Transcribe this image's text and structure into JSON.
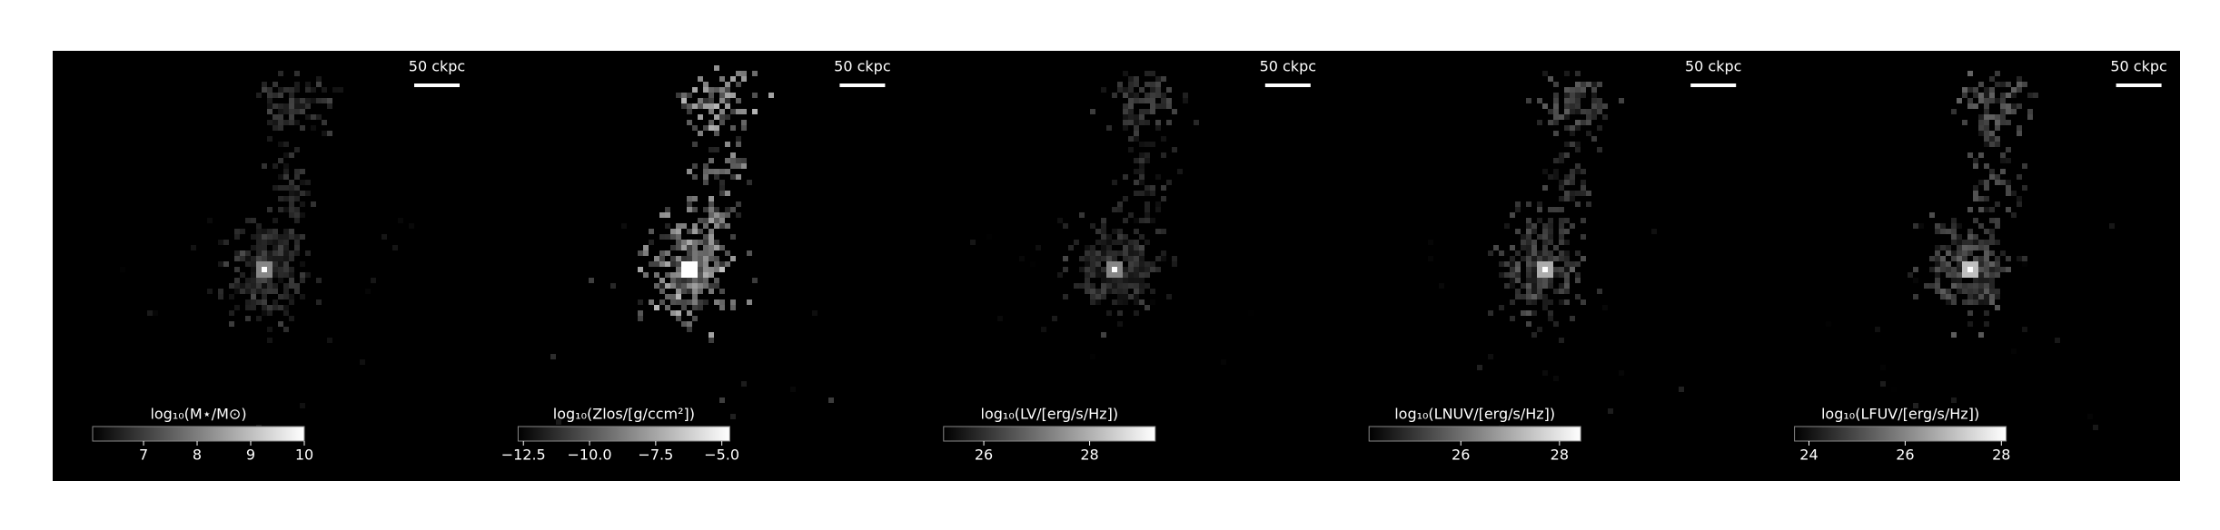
{
  "chart_data": [
    {
      "type": "image",
      "scale_bar": "50 ckpc",
      "colormap": [
        "#000000",
        "#ffffff"
      ],
      "colorbar": {
        "label": "log₁₀(M⋆/M⊙)",
        "xlim": [
          6.05,
          10.0
        ],
        "xticks": [
          7,
          8,
          9,
          10
        ]
      }
    },
    {
      "type": "image",
      "scale_bar": "50 ckpc",
      "colormap": [
        "#000000",
        "#ffffff"
      ],
      "colorbar": {
        "label": "log₁₀(Zlos/[g/ccm²])",
        "xlim": [
          -12.7,
          -4.7
        ],
        "xticks": [
          {
            "value": -12.5,
            "label": "−12.5"
          },
          {
            "value": -10.0,
            "label": "−10.0"
          },
          {
            "value": -7.5,
            "label": "−7.5"
          },
          {
            "value": -5.0,
            "label": "−5.0"
          }
        ]
      }
    },
    {
      "type": "image",
      "scale_bar": "50 ckpc",
      "colormap": [
        "#000000",
        "#ffffff"
      ],
      "colorbar": {
        "label": "log₁₀(LV/[erg/s/Hz])",
        "xlim": [
          25.24,
          29.24
        ],
        "xticks": [
          26,
          28
        ]
      }
    },
    {
      "type": "image",
      "scale_bar": "50 ckpc",
      "colormap": [
        "#000000",
        "#ffffff"
      ],
      "colorbar": {
        "label": "log₁₀(LNUV/[erg/s/Hz])",
        "xlim": [
          24.14,
          28.43
        ],
        "xticks": [
          26,
          28
        ]
      }
    },
    {
      "type": "image",
      "scale_bar": "50 ckpc",
      "colormap": [
        "#000000",
        "#ffffff"
      ],
      "colorbar": {
        "label": "log₁₀(LFUV/[erg/s/Hz])",
        "xlim": [
          23.7,
          28.1
        ],
        "xticks": [
          24,
          26,
          28
        ]
      }
    }
  ]
}
